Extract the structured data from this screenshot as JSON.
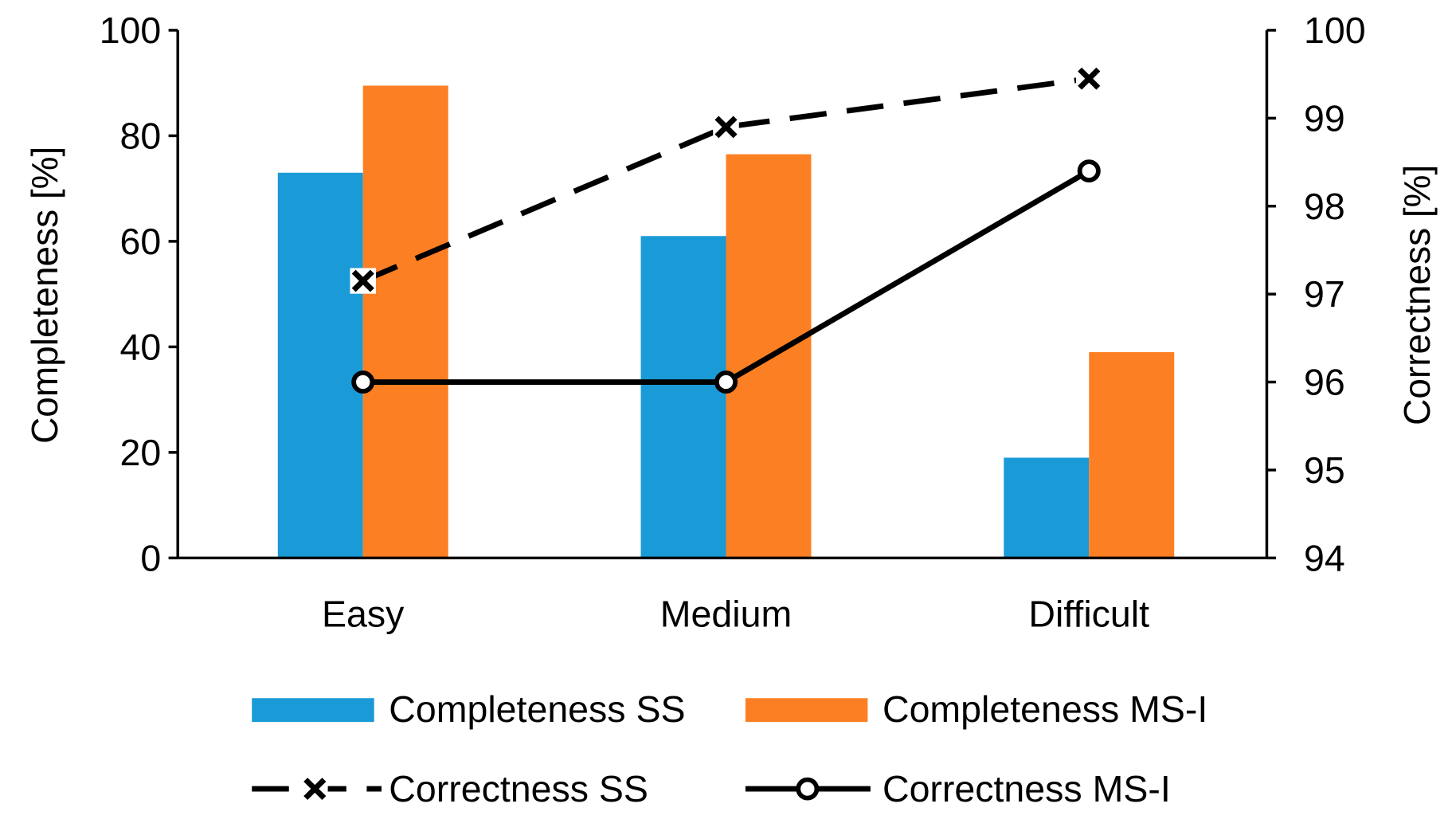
{
  "chart_data": {
    "type": "bar+line",
    "categories": [
      "Easy",
      "Medium",
      "Difficult"
    ],
    "y_left": {
      "label": "Completeness [%]",
      "lim": [
        0,
        100
      ],
      "ticks": [
        0,
        20,
        40,
        60,
        80,
        100
      ]
    },
    "y_right": {
      "label": "Correctness [%]",
      "lim": [
        94,
        100
      ],
      "ticks": [
        94,
        95,
        96,
        97,
        98,
        99,
        100
      ]
    },
    "bar_series": [
      {
        "name": "Completeness SS",
        "color": "#1a9ad6",
        "values": [
          73,
          61,
          19
        ]
      },
      {
        "name": "Completeness MS-I",
        "color": "#fd7f23",
        "values": [
          89.5,
          76.5,
          39
        ]
      }
    ],
    "line_series": [
      {
        "name": "Correctness SS",
        "axis": "right",
        "style": "dashed",
        "marker": "x",
        "values": [
          97.15,
          98.9,
          99.45
        ]
      },
      {
        "name": "Correctness MS-I",
        "axis": "right",
        "style": "solid",
        "marker": "circle",
        "values": [
          96.0,
          96.0,
          98.4
        ]
      }
    ],
    "grid": false,
    "legend_position": "bottom"
  }
}
